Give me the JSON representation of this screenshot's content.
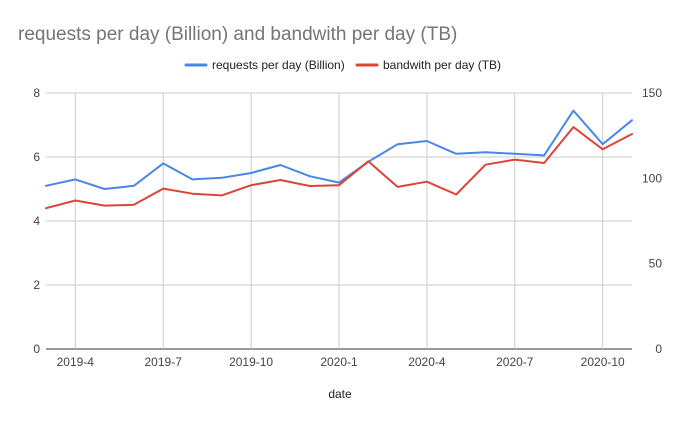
{
  "chart_data": {
    "type": "line",
    "title": "requests per day (Billion) and bandwith per day (TB)",
    "xlabel": "date",
    "ylabel": "",
    "y2label": "",
    "x_tick_labels": [
      "2019-4",
      "2019-7",
      "2019-10",
      "2020-1",
      "2020-4",
      "2020-7",
      "2020-10"
    ],
    "ylim": [
      0,
      8
    ],
    "y_ticks": [
      "0",
      "2",
      "4",
      "6",
      "8"
    ],
    "y2lim": [
      0,
      150
    ],
    "y2_ticks": [
      "0",
      "50",
      "100",
      "150"
    ],
    "grid": true,
    "legend_position": "top",
    "x": [
      "2019-3",
      "2019-4",
      "2019-5",
      "2019-6",
      "2019-7",
      "2019-8",
      "2019-9",
      "2019-10",
      "2019-11",
      "2019-12",
      "2020-1",
      "2020-2",
      "2020-3",
      "2020-4",
      "2020-5",
      "2020-6",
      "2020-7",
      "2020-8",
      "2020-9",
      "2020-10",
      "2020-11"
    ],
    "series": [
      {
        "name": "requests per day (Billion)",
        "axis": "left",
        "color": "#4a86e8",
        "values": [
          5.1,
          5.3,
          5.0,
          5.1,
          5.8,
          5.3,
          5.35,
          5.5,
          5.75,
          5.4,
          5.2,
          5.85,
          6.4,
          6.5,
          6.1,
          6.15,
          6.1,
          6.05,
          7.45,
          6.4,
          7.15
        ]
      },
      {
        "name": "bandwith per day (TB)",
        "axis": "right",
        "color": "#db4437",
        "values": [
          82.5,
          87,
          84,
          84.5,
          94,
          91,
          90,
          96,
          99,
          95.5,
          96,
          110,
          95,
          98,
          90.5,
          108,
          111,
          109,
          130,
          117,
          126
        ]
      }
    ]
  }
}
